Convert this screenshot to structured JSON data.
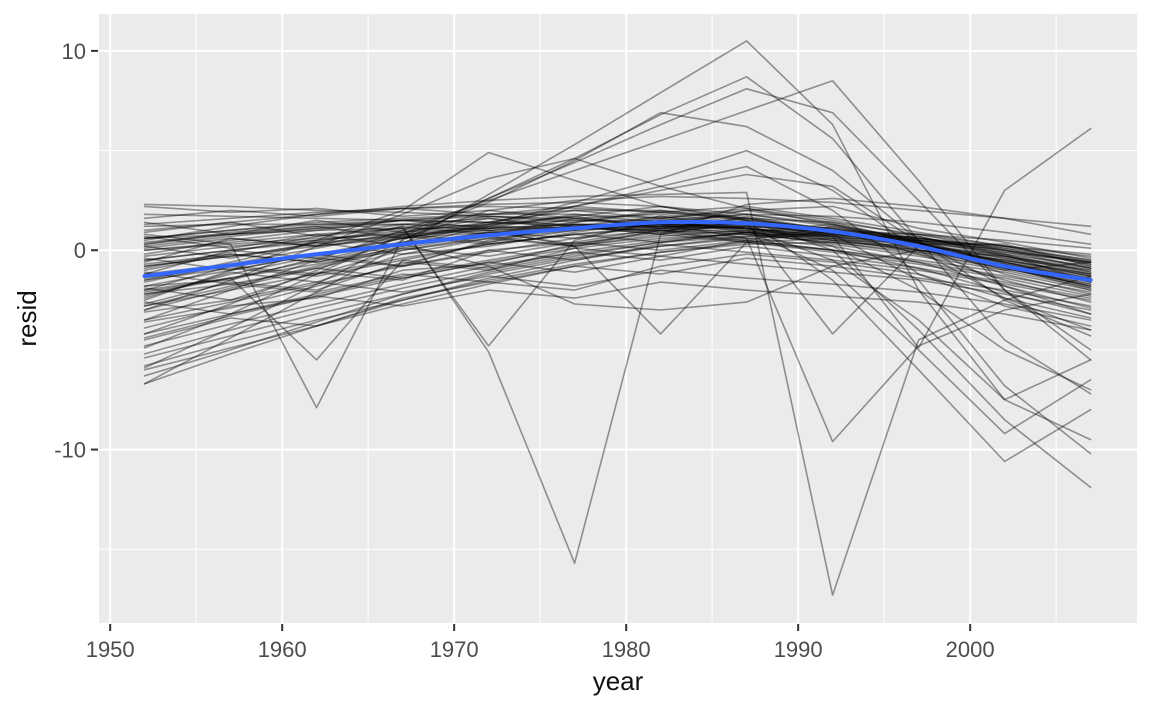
{
  "chart_data": {
    "type": "line",
    "title": "",
    "xlabel": "year",
    "ylabel": "resid",
    "legend": "none",
    "grid": true,
    "x_domain": [
      1949.35,
      2009.7
    ],
    "y_domain": [
      -18.7,
      11.85
    ],
    "x_ticks": {
      "major": [
        1950,
        1960,
        1970,
        1980,
        1990,
        2000
      ],
      "minor": [
        1955,
        1965,
        1975,
        1985,
        1995,
        2005
      ]
    },
    "y_ticks": {
      "major": [
        10,
        0,
        -10
      ],
      "minor": [
        5,
        -5,
        -15
      ]
    },
    "x": [
      1952,
      1957,
      1962,
      1967,
      1972,
      1977,
      1982,
      1987,
      1992,
      1997,
      2002,
      2007
    ],
    "styles": {
      "panel_bg": "#EBEBEB",
      "grid_color": "#FFFFFF",
      "tick_color": "#333333",
      "tick_label_color": "#4d4d4d",
      "axis_title_color": "#111111",
      "country_line_color": "#000000",
      "country_line_opacity": 0.4,
      "country_line_width": 1.6,
      "smooth_color": "#3366FF",
      "smooth_width": 4
    },
    "series": [
      {
        "name": "smooth-trend",
        "type": "smooth",
        "values": [
          -1.3,
          -0.75,
          -0.2,
          0.3,
          0.75,
          1.1,
          1.4,
          1.35,
          0.95,
          0.2,
          -0.8,
          -1.5
        ]
      },
      {
        "name": "country-residuals",
        "type": "line-group",
        "lines": [
          [
            -0.3,
            0.2,
            0.5,
            0.9,
            1.1,
            1.3,
            1.2,
            1.0,
            0.6,
            0.1,
            -0.5,
            -1.2
          ],
          [
            -0.8,
            -0.3,
            0.2,
            0.6,
            0.9,
            1.1,
            1.2,
            1.1,
            0.7,
            0.0,
            -0.8,
            -1.6
          ],
          [
            -1.4,
            -0.8,
            -0.2,
            0.4,
            0.8,
            1.1,
            1.3,
            1.2,
            0.9,
            0.3,
            -0.6,
            -1.5
          ],
          [
            -2.1,
            -1.4,
            -0.7,
            0.0,
            0.6,
            1.0,
            1.3,
            1.3,
            1.0,
            0.4,
            -0.4,
            -1.3
          ],
          [
            -2.8,
            -2.0,
            -1.2,
            -0.4,
            0.3,
            0.8,
            1.2,
            1.3,
            1.1,
            0.5,
            -0.3,
            -1.1
          ],
          [
            -3.5,
            -2.6,
            -1.7,
            -0.8,
            -0.1,
            0.6,
            1.0,
            1.2,
            1.1,
            0.6,
            -0.1,
            -0.9
          ],
          [
            -4.2,
            -3.2,
            -2.2,
            -1.3,
            -0.5,
            0.2,
            0.7,
            1.0,
            1.0,
            0.6,
            0.0,
            -0.7
          ],
          [
            -4.8,
            -3.7,
            -2.7,
            -1.7,
            -0.8,
            -0.1,
            0.5,
            0.9,
            0.9,
            0.6,
            0.1,
            -0.5
          ],
          [
            -5.4,
            -4.3,
            -3.2,
            -2.2,
            -1.2,
            -0.4,
            0.2,
            0.6,
            0.8,
            0.6,
            0.2,
            -0.3
          ],
          [
            -6.0,
            -4.9,
            -3.8,
            -2.7,
            -1.7,
            -0.8,
            -0.1,
            0.4,
            0.6,
            0.5,
            0.2,
            -0.2
          ],
          [
            1.8,
            1.7,
            1.6,
            1.5,
            1.4,
            1.3,
            1.1,
            0.9,
            0.5,
            0.0,
            -0.6,
            -1.3
          ],
          [
            1.2,
            1.3,
            1.3,
            1.3,
            1.2,
            1.1,
            1.0,
            0.8,
            0.4,
            -0.1,
            -0.7,
            -1.4
          ],
          [
            0.6,
            0.8,
            1.0,
            1.1,
            1.1,
            1.1,
            1.0,
            0.8,
            0.4,
            -0.2,
            -0.9,
            -1.7
          ],
          [
            0.0,
            0.3,
            0.6,
            0.8,
            1.0,
            1.1,
            1.1,
            0.9,
            0.5,
            0.0,
            -0.7,
            -1.5
          ],
          [
            -0.5,
            0.0,
            0.4,
            0.7,
            1.0,
            1.2,
            1.2,
            1.1,
            0.8,
            0.2,
            -0.6,
            -1.4
          ],
          [
            -1.0,
            -0.2,
            -0.6,
            0.3,
            0.9,
            0.6,
            1.4,
            1.1,
            0.5,
            0.4,
            -0.9,
            -1.8
          ],
          [
            -1.8,
            -1.5,
            -0.4,
            -0.8,
            0.5,
            1.2,
            0.8,
            1.5,
            1.1,
            0.0,
            -0.3,
            -1.0
          ],
          [
            -2.4,
            -1.1,
            -1.6,
            -0.2,
            0.2,
            0.9,
            1.5,
            0.9,
            1.3,
            0.2,
            -1.0,
            -0.6
          ],
          [
            -3.1,
            -2.5,
            -1.1,
            -1.5,
            0.0,
            0.4,
            1.1,
            1.4,
            0.7,
            0.7,
            -0.2,
            -1.6
          ],
          [
            -3.9,
            -2.8,
            -2.4,
            -1.0,
            -0.7,
            0.3,
            0.9,
            0.5,
            1.2,
            0.3,
            0.3,
            -0.8
          ],
          [
            0.9,
            1.4,
            0.7,
            1.3,
            1.6,
            1.2,
            1.7,
            1.3,
            0.8,
            0.5,
            -0.2,
            -1.1
          ],
          [
            0.3,
            0.9,
            1.2,
            0.6,
            1.3,
            1.7,
            1.1,
            1.6,
            1.0,
            0.3,
            -0.5,
            -1.3
          ],
          [
            -0.2,
            0.5,
            1.0,
            1.5,
            1.1,
            1.8,
            1.4,
            1.8,
            1.2,
            0.6,
            0.1,
            -0.7
          ],
          [
            -0.9,
            -0.1,
            0.7,
            1.1,
            1.7,
            1.4,
            2.0,
            1.6,
            1.4,
            0.8,
            0.0,
            -0.9
          ],
          [
            -1.6,
            -0.7,
            0.1,
            0.9,
            1.4,
            2.0,
            1.6,
            2.1,
            1.5,
            0.7,
            -0.3,
            -1.2
          ],
          [
            -2.3,
            -1.2,
            -0.3,
            0.6,
            1.2,
            1.7,
            2.2,
            1.8,
            1.3,
            0.5,
            -0.7,
            -1.9
          ],
          [
            -3.0,
            -1.9,
            -0.9,
            0.1,
            0.8,
            1.4,
            1.9,
            2.2,
            1.6,
            0.9,
            0.2,
            -0.5
          ],
          [
            -3.6,
            -2.9,
            -1.8,
            -0.7,
            0.4,
            1.0,
            1.6,
            2.0,
            2.2,
            1.1,
            0.4,
            -0.4
          ],
          [
            2.2,
            1.9,
            2.1,
            1.7,
            2.0,
            1.6,
            1.8,
            1.4,
            0.9,
            0.3,
            -0.4,
            -1.0
          ],
          [
            1.6,
            2.0,
            1.7,
            2.1,
            1.8,
            2.2,
            1.9,
            1.5,
            1.0,
            0.2,
            -0.8,
            -1.7
          ],
          [
            -0.6,
            0.6,
            0.2,
            1.2,
            0.8,
            1.6,
            1.2,
            2.0,
            1.4,
            0.4,
            -1.2,
            -2.2
          ],
          [
            -1.2,
            0.0,
            -0.4,
            0.8,
            0.4,
            1.3,
            0.9,
            1.7,
            1.0,
            -0.2,
            -1.5,
            -2.6
          ],
          [
            -2.0,
            -0.8,
            -1.2,
            0.0,
            0.7,
            0.2,
            1.0,
            0.6,
            0.2,
            -0.6,
            -1.8,
            -2.9
          ],
          [
            -2.7,
            -1.6,
            -2.0,
            -0.6,
            -1.0,
            0.1,
            -0.3,
            0.5,
            0.0,
            -0.9,
            -2.1,
            -3.2
          ],
          [
            -4.5,
            -3.4,
            -3.8,
            -2.4,
            -1.6,
            -2.0,
            -0.8,
            -0.2,
            -0.6,
            -1.2,
            -2.4,
            -3.4
          ],
          [
            0.2,
            -0.4,
            0.4,
            -0.2,
            0.6,
            0.2,
            0.8,
            0.4,
            0.0,
            -0.5,
            -1.1,
            -2.0
          ],
          [
            -0.4,
            -1.0,
            -0.2,
            -0.8,
            0.0,
            -0.5,
            0.3,
            -0.1,
            -0.5,
            -1.0,
            -1.7,
            -2.5
          ],
          [
            -1.1,
            -1.7,
            -0.9,
            -1.4,
            -0.6,
            -1.1,
            -0.3,
            -0.7,
            -1.1,
            -1.5,
            -2.2,
            -3.0
          ],
          [
            -1.9,
            -2.5,
            -1.6,
            -2.1,
            -1.3,
            -1.8,
            -1.0,
            -1.4,
            -1.7,
            -2.1,
            -2.7,
            -3.5
          ],
          [
            -2.6,
            -3.2,
            -2.3,
            -2.8,
            -2.0,
            -2.4,
            -1.6,
            -2.0,
            -2.3,
            -2.6,
            -3.2,
            -4.0
          ],
          [
            1.4,
            0.8,
            1.5,
            0.9,
            1.6,
            1.0,
            1.7,
            1.1,
            0.6,
            -0.1,
            -0.9,
            -1.8
          ],
          [
            0.7,
            0.1,
            0.8,
            0.2,
            0.9,
            0.3,
            1.0,
            0.4,
            -0.1,
            -0.7,
            -1.4,
            -2.3
          ],
          [
            -5.8,
            -4.6,
            -3.5,
            -2.5,
            -1.5,
            -0.7,
            -0.1,
            0.3,
            0.4,
            0.2,
            -0.2,
            -0.8
          ],
          [
            -5.2,
            -4.0,
            -2.9,
            -1.9,
            -1.0,
            -0.2,
            0.4,
            0.7,
            0.7,
            0.4,
            -0.1,
            -0.6
          ],
          [
            -4.4,
            -3.3,
            -2.3,
            -1.4,
            -0.6,
            0.1,
            0.6,
            0.8,
            0.8,
            0.5,
            0.0,
            -0.6
          ],
          [
            0.1,
            0.6,
            0.2,
            0.7,
            0.3,
            0.8,
            0.4,
            0.9,
            0.3,
            -0.3,
            -1.0,
            -1.9
          ],
          [
            -0.7,
            -0.2,
            -0.6,
            0.1,
            -0.3,
            0.4,
            0.0,
            0.5,
            0.0,
            -0.6,
            -1.3,
            -2.1
          ],
          [
            -1.5,
            -0.9,
            -1.3,
            -0.5,
            -0.9,
            -0.1,
            -0.5,
            0.2,
            -0.3,
            -0.9,
            -1.6,
            -2.4
          ],
          [
            -2.2,
            -1.7,
            -2.1,
            -1.2,
            -1.6,
            -0.8,
            -1.2,
            -0.4,
            -0.8,
            -1.4,
            -2.0,
            -2.8
          ],
          [
            2.3,
            2.2,
            2.0,
            1.9,
            1.7,
            1.5,
            1.3,
            1.1,
            0.7,
            0.2,
            -0.3,
            -0.9
          ],
          [
            -1.5,
            -0.6,
            0.4,
            1.2,
            -5.1,
            -15.7,
            0.8,
            2.3,
            2.6,
            2.2,
            1.6,
            0.8
          ],
          [
            0.5,
            1.2,
            1.8,
            2.2,
            2.5,
            2.7,
            2.8,
            2.9,
            -17.3,
            -4.5,
            -2.5,
            -1.3
          ],
          [
            0.3,
            0.8,
            1.2,
            1.5,
            1.7,
            1.6,
            1.3,
            0.6,
            -9.6,
            -4.8,
            -3.0,
            -2.2
          ],
          [
            0.8,
            0.3,
            -7.9,
            0.6,
            2.0,
            2.5,
            2.7,
            2.6,
            2.4,
            2.0,
            1.6,
            1.2
          ],
          [
            -6.7,
            -4.4,
            -2.1,
            0.3,
            2.8,
            5.3,
            7.9,
            10.5,
            6.3,
            -2.0,
            -7.5,
            -9.5
          ],
          [
            -5.9,
            -3.9,
            -1.7,
            0.5,
            2.6,
            4.6,
            6.8,
            8.7,
            5.6,
            0.5,
            -4.5,
            -7.2
          ],
          [
            -4.9,
            -3.2,
            -1.2,
            0.8,
            2.6,
            4.4,
            6.3,
            8.1,
            6.9,
            2.5,
            -2.0,
            -5.0
          ],
          [
            -4.2,
            -2.7,
            -1.0,
            0.7,
            2.4,
            4.5,
            6.9,
            6.2,
            4.0,
            0.5,
            -2.5,
            -4.3
          ],
          [
            1.0,
            1.4,
            1.8,
            2.1,
            2.3,
            2.4,
            2.2,
            1.5,
            -1.5,
            -6.0,
            -10.6,
            -8.0
          ],
          [
            0.2,
            0.7,
            1.1,
            1.5,
            1.8,
            2.0,
            2.0,
            1.5,
            0.0,
            -4.0,
            -8.5,
            -11.9
          ],
          [
            -0.5,
            0.0,
            0.5,
            1.0,
            1.3,
            1.5,
            1.5,
            1.0,
            -1.0,
            -5.0,
            -9.2,
            -6.5
          ],
          [
            -6.3,
            -5.0,
            -3.6,
            -2.2,
            -1.1,
            -0.3,
            0.4,
            0.9,
            0.7,
            -4.9,
            3.0,
            6.1
          ],
          [
            -6.7,
            -5.2,
            -3.8,
            -2.5,
            -1.4,
            -0.5,
            0.2,
            0.7,
            0.9,
            0.8,
            0.5,
            0.1
          ],
          [
            -2.0,
            -1.4,
            -5.5,
            -0.5,
            0.3,
            0.8,
            1.1,
            1.2,
            0.9,
            0.5,
            0.0,
            -0.6
          ],
          [
            0.0,
            0.4,
            0.8,
            1.1,
            -4.8,
            0.5,
            1.5,
            1.8,
            1.7,
            1.4,
            0.9,
            0.3
          ],
          [
            -3.5,
            -2.0,
            -0.5,
            1.0,
            2.5,
            4.0,
            5.5,
            7.0,
            8.5,
            3.5,
            -2.0,
            -5.5
          ],
          [
            -2.5,
            -1.0,
            0.5,
            2.0,
            4.9,
            3.5,
            2.2,
            1.6,
            1.0,
            0.4,
            -0.6,
            -1.6
          ],
          [
            -3.0,
            -1.5,
            0.2,
            1.8,
            3.6,
            4.6,
            3.2,
            2.1,
            1.3,
            0.4,
            -0.8,
            -2.0
          ],
          [
            -0.8,
            -0.3,
            0.3,
            0.8,
            1.1,
            1.3,
            1.3,
            1.1,
            -0.5,
            -3.5,
            -7.5,
            -5.5
          ],
          [
            0.6,
            1.0,
            1.4,
            1.6,
            1.8,
            1.8,
            1.6,
            1.2,
            0.2,
            -2.0,
            -5.0,
            -7.0
          ],
          [
            1.3,
            1.6,
            1.9,
            2.1,
            2.2,
            2.1,
            1.9,
            1.6,
            0.8,
            -1.5,
            -6.8,
            -10.2
          ],
          [
            -1.2,
            -0.7,
            -0.2,
            0.3,
            -0.8,
            -2.7,
            -3.0,
            -2.6,
            -0.8,
            0.0,
            -0.5,
            -1.2
          ],
          [
            0.4,
            0.8,
            1.1,
            1.3,
            1.0,
            0.2,
            -4.2,
            0.4,
            1.0,
            0.8,
            0.2,
            -0.6
          ],
          [
            0.6,
            1.0,
            1.3,
            1.5,
            1.4,
            1.2,
            0.8,
            1.4,
            -4.2,
            0.2,
            -0.8,
            -1.8
          ],
          [
            -2.8,
            -1.8,
            -0.8,
            0.2,
            1.2,
            2.2,
            3.2,
            4.2,
            2.0,
            -1.2,
            -2.8,
            -3.8
          ],
          [
            -1.8,
            -1.0,
            -0.2,
            0.6,
            1.4,
            2.2,
            3.0,
            3.8,
            3.2,
            0.4,
            -1.8,
            -3.2
          ],
          [
            -2.2,
            -1.4,
            -0.5,
            0.4,
            1.3,
            2.4,
            3.6,
            5.0,
            3.0,
            0.0,
            -2.4,
            -4.0
          ]
        ]
      }
    ]
  }
}
